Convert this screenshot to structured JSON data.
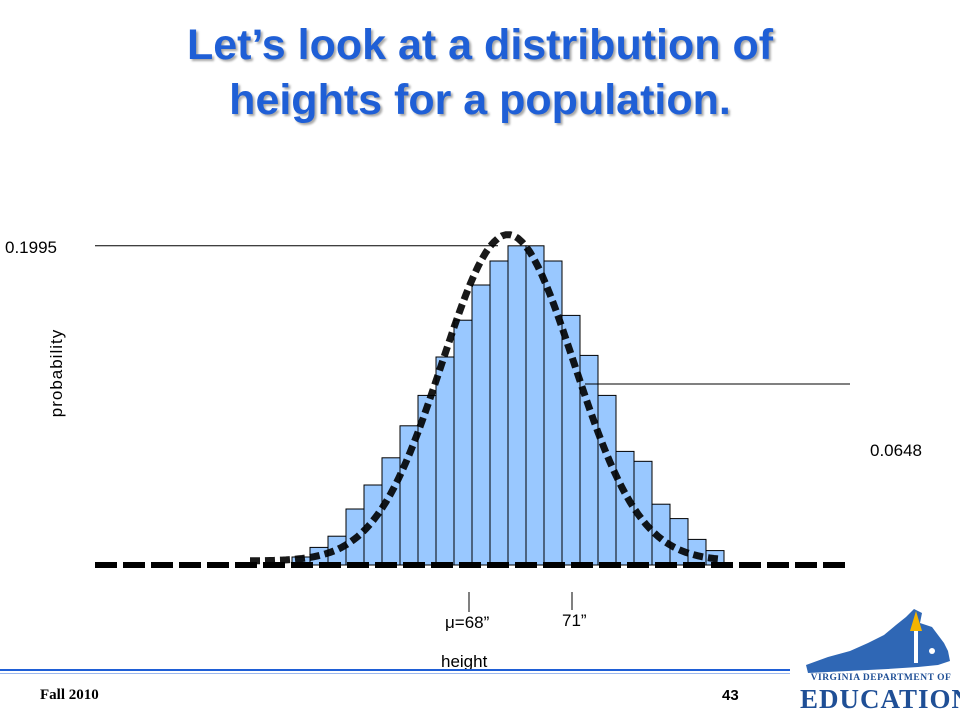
{
  "slide": {
    "title_line1": "Let’s look at a distribution of",
    "title_line2": "heights for a population.",
    "footer_left": "Fall 2010",
    "page_number": "43",
    "logo_line1": "VIRGINIA DEPARTMENT OF",
    "logo_line2": "EDUCATION",
    "title_color": "#1f5fd6"
  },
  "chart_data": {
    "type": "bar",
    "title": "",
    "xlabel": "height",
    "ylabel": "probability",
    "bar_color": "#99c8ff",
    "curve": "normal",
    "mean": 68,
    "mean_label": "μ=68”",
    "marker_label": "71”",
    "annotations": [
      {
        "label": "0.1995",
        "value": 0.1995
      },
      {
        "label": "0.0648",
        "value": 0.0648
      }
    ],
    "values": [
      0.005,
      0.011,
      0.018,
      0.035,
      0.05,
      0.067,
      0.087,
      0.106,
      0.13,
      0.153,
      0.175,
      0.19,
      0.1995,
      0.1995,
      0.19,
      0.156,
      0.131,
      0.106,
      0.071,
      0.0648,
      0.038,
      0.029,
      0.016,
      0.009
    ],
    "ylim": [
      0,
      0.2
    ]
  }
}
